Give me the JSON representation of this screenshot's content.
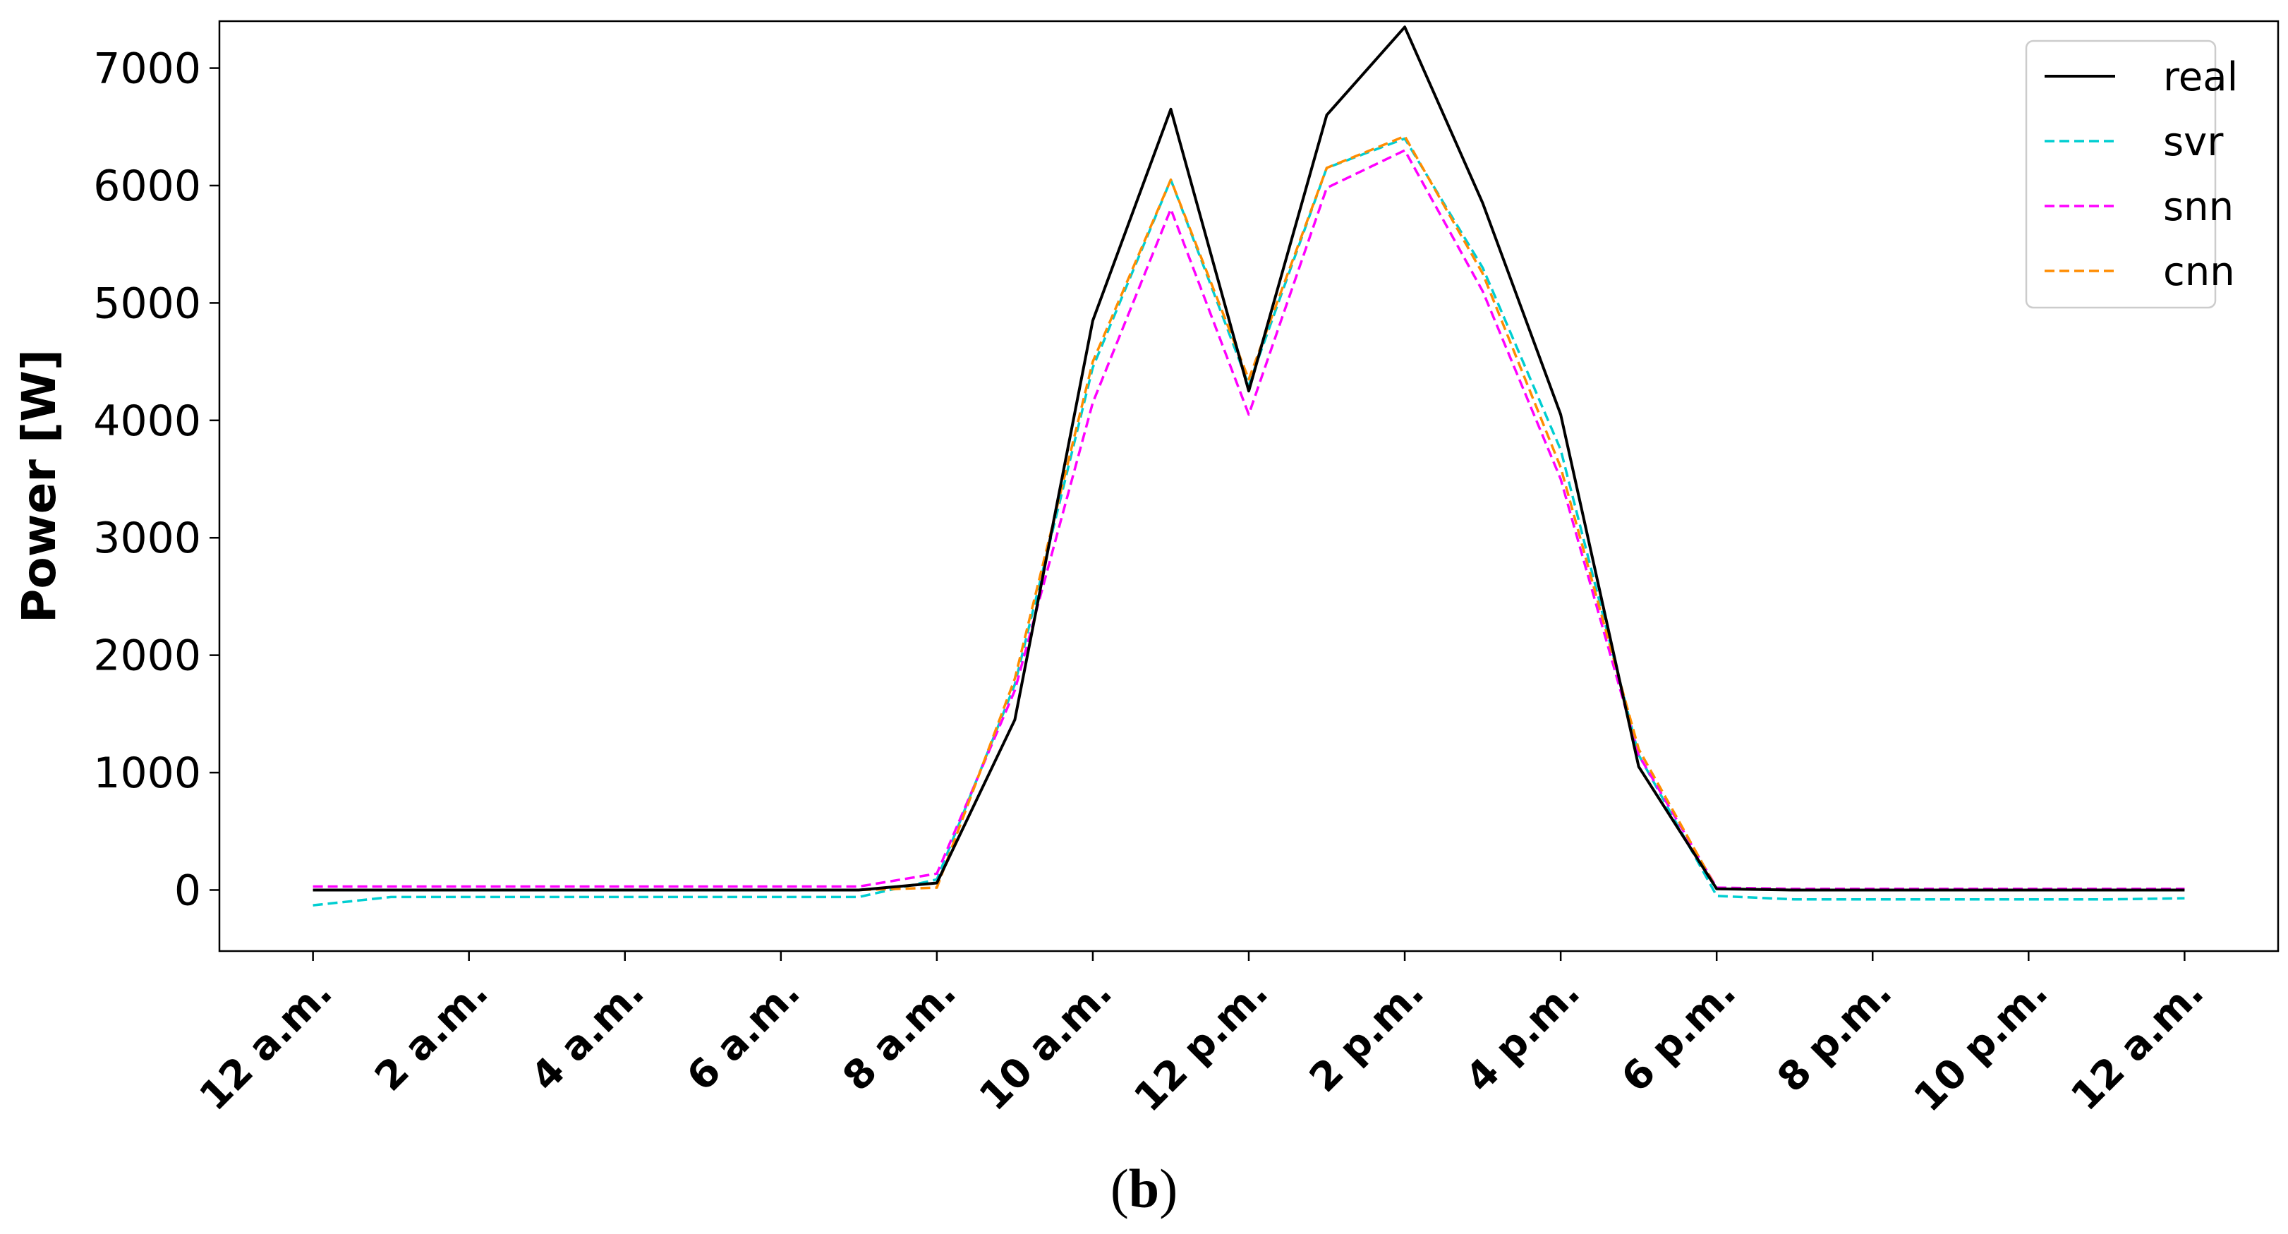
{
  "caption": {
    "open": "(",
    "letter": "b",
    "close": ")"
  },
  "chart_data": {
    "type": "line",
    "title": "",
    "xlabel": "",
    "ylabel": "Power [W]",
    "x_hours": [
      0,
      1,
      2,
      3,
      4,
      5,
      6,
      7,
      8,
      9,
      10,
      11,
      12,
      13,
      14,
      15,
      16,
      17,
      18,
      19,
      20,
      21,
      22,
      23,
      24
    ],
    "xticks": [
      {
        "hour": 0,
        "label": "12 a.m."
      },
      {
        "hour": 2,
        "label": "2 a.m."
      },
      {
        "hour": 4,
        "label": "4 a.m."
      },
      {
        "hour": 6,
        "label": "6 a.m."
      },
      {
        "hour": 8,
        "label": "8 a.m."
      },
      {
        "hour": 10,
        "label": "10 a.m."
      },
      {
        "hour": 12,
        "label": "12 p.m."
      },
      {
        "hour": 14,
        "label": "2 p.m."
      },
      {
        "hour": 16,
        "label": "4 p.m."
      },
      {
        "hour": 18,
        "label": "6 p.m."
      },
      {
        "hour": 20,
        "label": "8 p.m."
      },
      {
        "hour": 22,
        "label": "10 p.m."
      },
      {
        "hour": 24,
        "label": "12 a.m."
      }
    ],
    "yticks": [
      0,
      1000,
      2000,
      3000,
      4000,
      5000,
      6000,
      7000
    ],
    "xlim": [
      -1.2,
      25.2
    ],
    "ylim": [
      -520,
      7400
    ],
    "grid": false,
    "legend_position": "top-right",
    "series": [
      {
        "name": "real",
        "color": "#000000",
        "dash": "solid",
        "values": [
          0,
          0,
          0,
          0,
          0,
          0,
          0,
          0,
          60,
          1450,
          4850,
          6650,
          4250,
          6600,
          7350,
          5850,
          4050,
          1050,
          10,
          0,
          0,
          0,
          0,
          0,
          0
        ]
      },
      {
        "name": "svr",
        "color": "#00CED1",
        "dash": "dashed",
        "values": [
          -130,
          -60,
          -60,
          -60,
          -60,
          -60,
          -60,
          -60,
          90,
          1750,
          4450,
          6050,
          4300,
          6150,
          6400,
          5300,
          3750,
          1150,
          -50,
          -80,
          -80,
          -80,
          -80,
          -80,
          -70
        ]
      },
      {
        "name": "snn",
        "color": "#FF00FF",
        "dash": "dashed",
        "values": [
          30,
          30,
          30,
          30,
          30,
          30,
          30,
          30,
          140,
          1700,
          4150,
          5800,
          4050,
          5980,
          6300,
          5100,
          3500,
          1150,
          20,
          10,
          10,
          10,
          10,
          10,
          10
        ]
      },
      {
        "name": "cnn",
        "color": "#FF8C00",
        "dash": "dashed",
        "values": [
          0,
          0,
          0,
          0,
          0,
          0,
          0,
          0,
          20,
          1800,
          4500,
          6050,
          4350,
          6150,
          6420,
          5250,
          3600,
          1200,
          10,
          0,
          0,
          0,
          0,
          0,
          0
        ]
      }
    ]
  }
}
